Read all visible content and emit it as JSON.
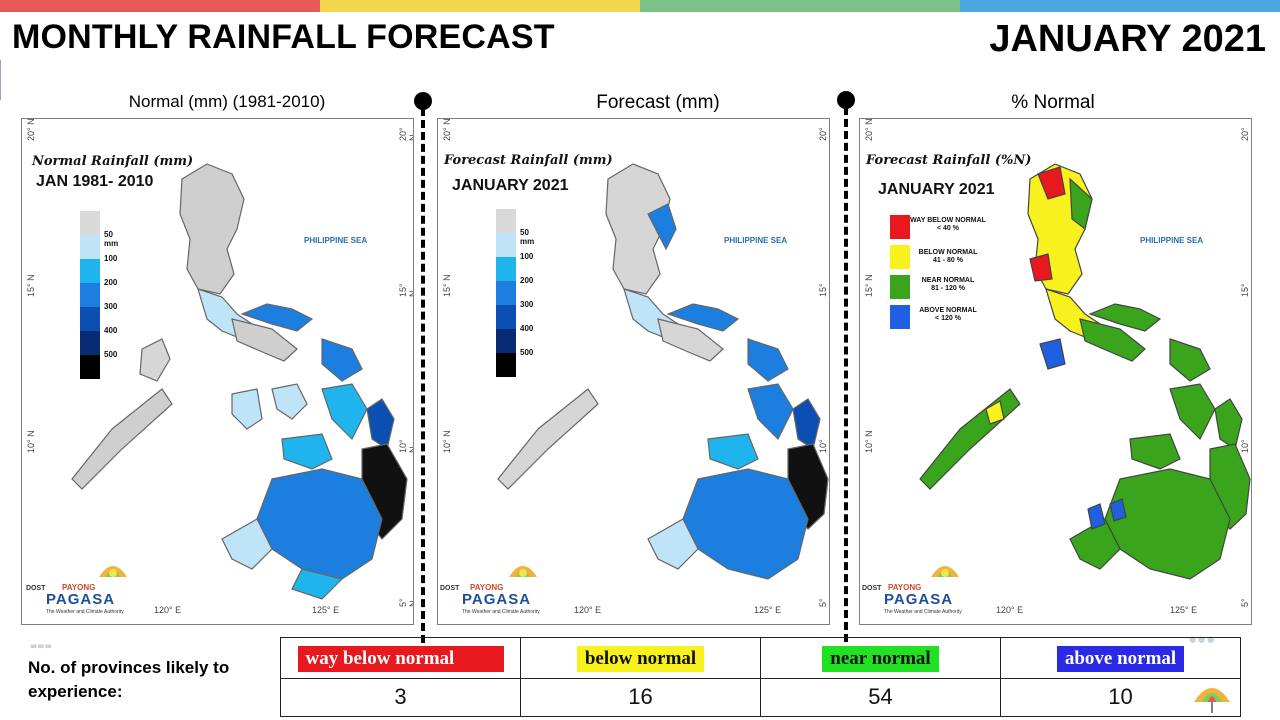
{
  "header": {
    "title": "MONTHLY RAINFALL FORECAST",
    "date": "JANUARY 2021",
    "bar_colors": [
      "#e8575a",
      "#f2d64b",
      "#7cc08a",
      "#4aa8e0"
    ]
  },
  "panels": [
    {
      "label": "Normal (mm) (1981-2010)",
      "map_title": "Normal Rainfall (mm)",
      "map_subtitle": "JAN 1981- 2010",
      "legend": [
        "50 mm",
        "100",
        "200",
        "300",
        "400",
        "500"
      ],
      "legend_colors": [
        "#d9d9d9",
        "#bfe3f7",
        "#1fb4ee",
        "#1c7fe0",
        "#0b4fb3",
        "#082c73",
        "#000000"
      ]
    },
    {
      "label": "Forecast (mm)",
      "map_title": "Forecast Rainfall (mm)",
      "map_subtitle": "JANUARY 2021",
      "legend": [
        "50 mm",
        "100",
        "200",
        "300",
        "400",
        "500"
      ],
      "legend_colors": [
        "#d9d9d9",
        "#bfe3f7",
        "#1fb4ee",
        "#1c7fe0",
        "#0b4fb3",
        "#082c73",
        "#000000"
      ]
    },
    {
      "label": "% Normal",
      "map_title": "Forecast Rainfall (%N)",
      "map_subtitle": "JANUARY 2021",
      "categories": [
        {
          "name": "WAY BELOW NORMAL",
          "range": "< 40 %",
          "color": "#e8191e"
        },
        {
          "name": "BELOW NORMAL",
          "range": "41 - 80 %",
          "color": "#f7f21e"
        },
        {
          "name": "NEAR NORMAL",
          "range": "81 - 120 %",
          "color": "#3aa51c"
        },
        {
          "name": "ABOVE NORMAL",
          "range": "< 120 %",
          "color": "#1f5fe0"
        }
      ]
    }
  ],
  "map_common": {
    "sea_label": "PHILIPPINE SEA",
    "lat_ticks": [
      "20° N",
      "15° N",
      "10° N",
      "5° N"
    ],
    "lon_ticks": [
      "120° E",
      "125° E"
    ],
    "logo": {
      "dost": "DOST",
      "payong": "PAYONG",
      "pagasa": "PAGASA",
      "tagline": "The Weather and Climate Authority"
    }
  },
  "summary": {
    "label": "No. of provinces likely to experience:",
    "columns": [
      {
        "category": "way below normal",
        "count": "3",
        "color": "#e8191e",
        "text_color": "#ffffff"
      },
      {
        "category": "below normal",
        "count": "16",
        "color": "#f7f21e",
        "text_color": "#111111"
      },
      {
        "category": "near normal",
        "count": "54",
        "color": "#22e022",
        "text_color": "#111111"
      },
      {
        "category": "above normal",
        "count": "10",
        "color": "#2a2ae6",
        "text_color": "#ffffff"
      }
    ]
  }
}
